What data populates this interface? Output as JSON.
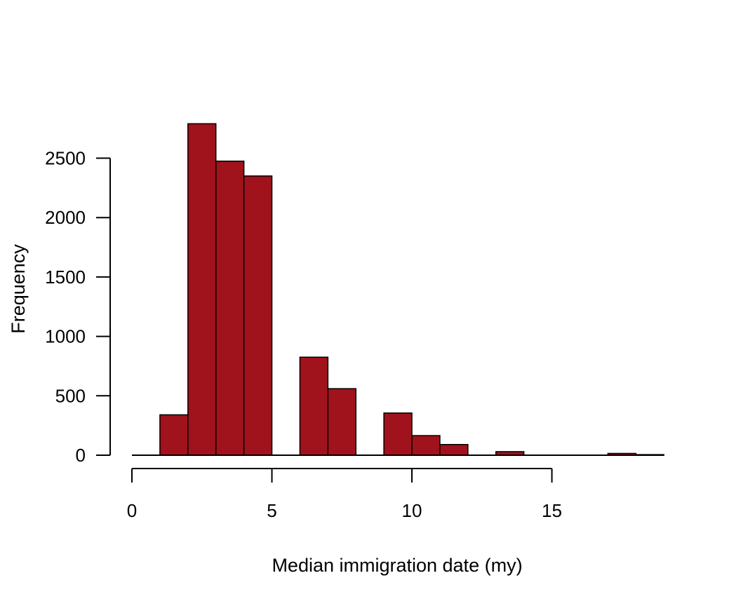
{
  "chart_data": {
    "type": "bar",
    "title": "",
    "xlabel": "Median immigration date (my)",
    "ylabel": "Frequency",
    "bin_edges": [
      0,
      1,
      2,
      3,
      4,
      5,
      6,
      7,
      8,
      9,
      10,
      11,
      12,
      13,
      14,
      15,
      16,
      17,
      18,
      19
    ],
    "values": [
      0,
      340,
      2790,
      2475,
      2350,
      0,
      825,
      560,
      0,
      355,
      165,
      90,
      0,
      30,
      0,
      0,
      0,
      15,
      5
    ],
    "xlim": [
      0,
      19
    ],
    "ylim": [
      0,
      2800
    ],
    "xticks": [
      0,
      5,
      10,
      15
    ],
    "yticks": [
      0,
      500,
      1000,
      1500,
      2000,
      2500
    ],
    "bar_color": "#a0121c",
    "grid": false
  }
}
